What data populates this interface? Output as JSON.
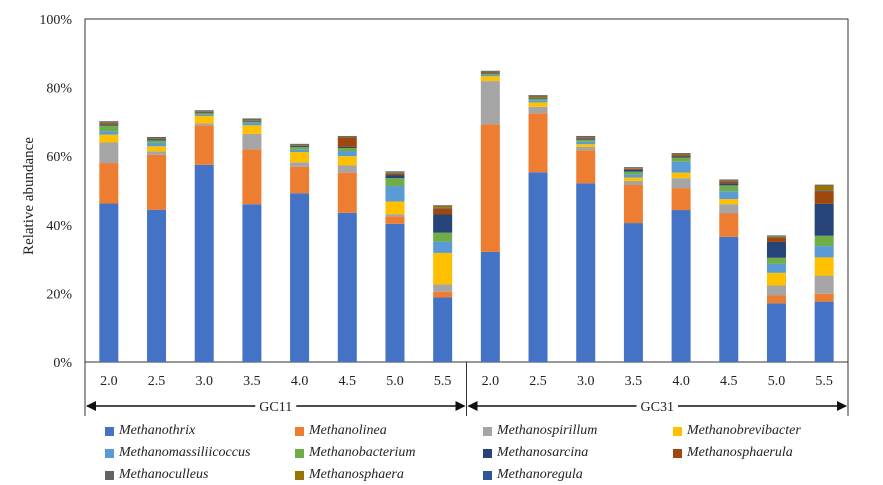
{
  "chart_data": {
    "type": "stacked-bar",
    "ylabel": "Relative abundance",
    "ylim": [
      0,
      100
    ],
    "y_ticks": [
      "0%",
      "20%",
      "40%",
      "60%",
      "80%",
      "100%"
    ],
    "groups": [
      {
        "label": "GC11",
        "categories": [
          "2.0",
          "2.5",
          "3.0",
          "3.5",
          "4.0",
          "4.5",
          "5.0",
          "5.5"
        ]
      },
      {
        "label": "GC31",
        "categories": [
          "2.0",
          "2.5",
          "3.0",
          "3.5",
          "4.0",
          "4.5",
          "5.0",
          "5.5"
        ]
      }
    ],
    "series": [
      {
        "name": "Methanothrix",
        "color": "#4472C4",
        "values": [
          46.2,
          44.4,
          57.5,
          46.0,
          49.2,
          43.5,
          40.3,
          18.8,
          32.1,
          55.3,
          52.1,
          40.5,
          44.3,
          36.5,
          17.1,
          17.6
        ]
      },
      {
        "name": "Methanolinea",
        "color": "#ED7D31",
        "values": [
          11.8,
          16.0,
          11.5,
          16.0,
          7.7,
          11.7,
          2.2,
          1.7,
          37.2,
          17.2,
          9.6,
          11.1,
          6.4,
          6.8,
          2.3,
          2.3
        ]
      },
      {
        "name": "Methanospirillum",
        "color": "#A5A5A5",
        "values": [
          6.0,
          1.0,
          0.6,
          4.5,
          1.3,
          2.1,
          0.6,
          2.1,
          12.6,
          1.9,
          1.0,
          1.2,
          2.9,
          2.7,
          2.9,
          5.3
        ]
      },
      {
        "name": "Methanobrevibacter",
        "color": "#FFC000",
        "values": [
          2.3,
          1.5,
          2.1,
          2.5,
          3.0,
          2.7,
          3.7,
          9.2,
          1.4,
          1.3,
          0.8,
          1.0,
          1.6,
          1.5,
          3.7,
          5.3
        ]
      },
      {
        "name": "Methanomassiliicoccus",
        "color": "#5B9BD5",
        "values": [
          1.0,
          1.0,
          0.4,
          0.8,
          0.7,
          1.5,
          4.5,
          3.3,
          0.4,
          0.6,
          0.7,
          0.9,
          3.2,
          2.3,
          2.6,
          3.3
        ]
      },
      {
        "name": "Methanobacterium",
        "color": "#70AD47",
        "values": [
          1.6,
          0.7,
          0.4,
          0.3,
          0.8,
          0.9,
          2.3,
          2.6,
          0.3,
          0.5,
          0.6,
          0.8,
          1.2,
          1.7,
          1.8,
          3.0
        ]
      },
      {
        "name": "Methanosarcina",
        "color": "#264478",
        "values": [
          0.3,
          0.3,
          0.2,
          0.2,
          0.3,
          0.3,
          0.9,
          5.3,
          0.1,
          0.2,
          0.3,
          0.5,
          0.3,
          0.6,
          4.6,
          9.3
        ]
      },
      {
        "name": "Methanosphaerula",
        "color": "#9E480E",
        "values": [
          0.3,
          0.2,
          0.2,
          0.2,
          0.2,
          2.8,
          0.4,
          1.7,
          0.1,
          0.2,
          0.3,
          0.3,
          0.4,
          0.6,
          1.2,
          3.6
        ]
      },
      {
        "name": "Methanoculleus",
        "color": "#636363",
        "values": [
          0.3,
          0.2,
          0.2,
          0.2,
          0.2,
          0.2,
          0.3,
          0.3,
          0.2,
          0.2,
          0.2,
          0.2,
          0.2,
          0.2,
          0.3,
          0.4
        ]
      },
      {
        "name": "Methanosphaera",
        "color": "#997300",
        "values": [
          0.3,
          0.2,
          0.2,
          0.2,
          0.1,
          0.1,
          0.3,
          0.6,
          0.4,
          0.3,
          0.2,
          0.2,
          0.3,
          0.2,
          0.3,
          1.5
        ]
      },
      {
        "name": "Methanoregula",
        "color": "#2E5597",
        "values": [
          0.1,
          0.1,
          0.1,
          0.1,
          0.1,
          0.1,
          0.1,
          0.1,
          0.1,
          0.1,
          0.1,
          0.1,
          0.1,
          0.1,
          0.1,
          0.1
        ]
      }
    ],
    "grid": false,
    "legend_position": "bottom"
  }
}
